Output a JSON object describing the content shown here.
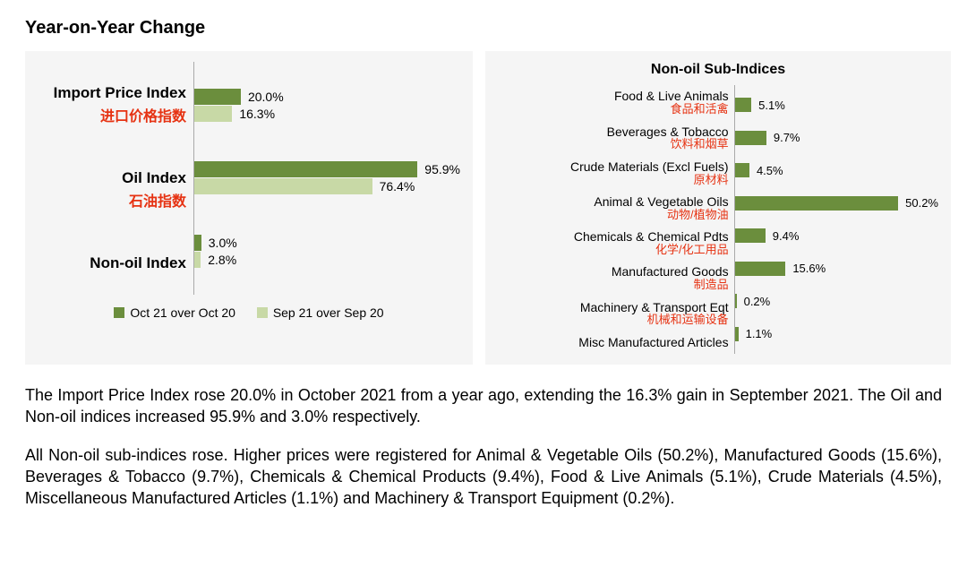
{
  "title": "Year-on-Year Change",
  "colors": {
    "series1": "#6b8e3d",
    "series2": "#c8d9a6",
    "panel_bg": "#f5f5f5",
    "text": "#000000",
    "cn_text": "#e63212",
    "axis": "#aaaaaa"
  },
  "left_chart": {
    "type": "bar",
    "max": 100,
    "legend": {
      "s1": "Oct 21 over Oct 20",
      "s2": "Sep 21 over Sep 20"
    },
    "categories": [
      {
        "en": "Import Price Index",
        "cn": "进口价格指数",
        "v1": 20.0,
        "v1_label": "20.0%",
        "v2": 16.3,
        "v2_label": "16.3%"
      },
      {
        "en": "Oil Index",
        "cn": "石油指数",
        "v1": 95.9,
        "v1_label": "95.9%",
        "v2": 76.4,
        "v2_label": "76.4%"
      },
      {
        "en": "Non-oil Index",
        "cn": "",
        "v1": 3.0,
        "v1_label": "3.0%",
        "v2": 2.8,
        "v2_label": "2.8%"
      }
    ]
  },
  "right_chart": {
    "type": "bar",
    "title": "Non-oil Sub-Indices",
    "max": 55,
    "items": [
      {
        "en": "Food & Live Animals",
        "cn": "食品和活禽",
        "v": 5.1,
        "label": "5.1%"
      },
      {
        "en": "Beverages & Tobacco",
        "cn": "饮料和烟草",
        "v": 9.7,
        "label": "9.7%"
      },
      {
        "en": "Crude Materials (Excl Fuels)",
        "cn": "原材料",
        "v": 4.5,
        "label": "4.5%"
      },
      {
        "en": "Animal & Vegetable Oils",
        "cn": "动物/植物油",
        "v": 50.2,
        "label": "50.2%"
      },
      {
        "en": "Chemicals & Chemical Pdts",
        "cn": "化学/化工用品",
        "v": 9.4,
        "label": "9.4%"
      },
      {
        "en": "Manufactured Goods",
        "cn": "制造品",
        "v": 15.6,
        "label": "15.6%"
      },
      {
        "en": "Machinery & Transport Eqt",
        "cn": "机械和运输设备",
        "v": 0.2,
        "label": "0.2%"
      },
      {
        "en": "Misc Manufactured Articles",
        "cn": "",
        "v": 1.1,
        "label": "1.1%"
      }
    ]
  },
  "paragraphs": [
    "The Import Price Index rose 20.0% in October 2021 from a year ago, extending the 16.3% gain in September 2021. The Oil and Non-oil indices increased 95.9% and 3.0% respectively.",
    "All Non-oil sub-indices rose. Higher prices were registered for Animal & Vegetable Oils (50.2%), Manufactured Goods (15.6%), Beverages & Tobacco (9.7%), Chemicals & Chemical Products (9.4%), Food & Live Animals (5.1%), Crude Materials (4.5%), Miscellaneous Manufactured Articles (1.1%) and Machinery & Transport Equipment (0.2%)."
  ]
}
